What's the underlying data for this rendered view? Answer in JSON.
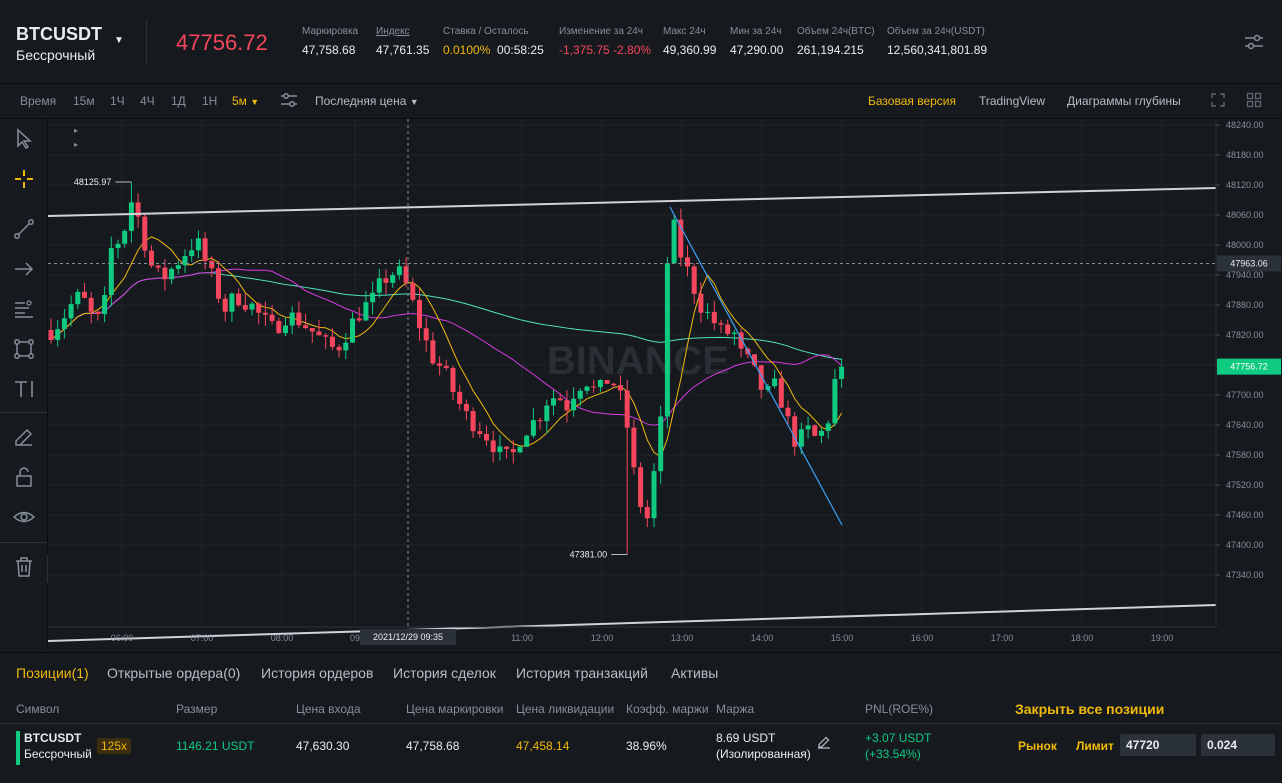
{
  "header": {
    "symbol": "BTCUSDT",
    "contract": "Бессрочный",
    "caret": "▼",
    "last_price": "47756.72",
    "stats": [
      {
        "label": "Маркировка",
        "value": "47,758.68"
      },
      {
        "label": "Индекс",
        "value": "47,761.35"
      },
      {
        "label": "Ставка / Осталось",
        "value": "0.0100%",
        "value2": "00:58:25"
      },
      {
        "label": "Изменение за 24ч",
        "value": "-1,375.75 -2.80%"
      },
      {
        "label": "Макс 24ч",
        "value": "49,360.99"
      },
      {
        "label": "Мин за 24ч",
        "value": "47,290.00"
      },
      {
        "label": "Объем 24ч(BTC)",
        "value": "261,194.215"
      },
      {
        "label": "Объем за 24ч(USDT)",
        "value": "12,560,341,801.89"
      }
    ]
  },
  "toolbar": {
    "intervals": [
      "Время",
      "15м",
      "1Ч",
      "4Ч",
      "1Д",
      "1Н",
      "5м"
    ],
    "active_interval": "5м",
    "price_type": "Последняя цена",
    "views": [
      "Базовая версия",
      "TradingView",
      "Диаграммы глубины"
    ],
    "active_view": "Базовая версия"
  },
  "chart": {
    "watermark": "BINANCE",
    "price_labels": [
      "48240.00",
      "48180.00",
      "48120.00",
      "48060.00",
      "48000.00",
      "47940.00",
      "47880.00",
      "47820.00",
      "47760.00",
      "47700.00",
      "47640.00",
      "47580.00",
      "47520.00",
      "47460.00",
      "47400.00",
      "47340.00"
    ],
    "time_labels": [
      "06:00",
      "07:00",
      "08:00",
      "09",
      "11:00",
      "12:00",
      "13:00",
      "14:00",
      "15:00",
      "16:00",
      "17:00",
      "18:00",
      "19:00"
    ],
    "crosshair_price": "47963.06",
    "crosshair_time": "2021/12/29 09:35",
    "current_price": "47756.72",
    "high_label": "48125.97",
    "low_label": "47381.00",
    "colors": {
      "up": "#0ecb81",
      "down": "#f6465d",
      "ma7": "#f0b90b",
      "ma25": "#d63ae3",
      "ma99": "#50e3c2",
      "trend": "#3d9ff5"
    }
  },
  "bottom": {
    "tabs": [
      "Позиции(1)",
      "Открытые ордера(0)",
      "История ордеров",
      "История сделок",
      "История транзакций",
      "Активы"
    ],
    "active_tab": "Позиции(1)",
    "columns": [
      "Символ",
      "Размер",
      "Цена входа",
      "Цена маркировки",
      "Цена ликвидации",
      "Коэфф. маржи",
      "Маржа",
      "PNL(ROE%)"
    ],
    "close_all": "Закрыть все позиции",
    "position": {
      "symbol": "BTCUSDT",
      "contract": "Бессрочный",
      "leverage": "125x",
      "size": "1146.21 USDT",
      "entry": "47,630.30",
      "mark": "47,758.68",
      "liq": "47,458.14",
      "margin_ratio": "38.96%",
      "margin": "8.69 USDT",
      "margin_type": "(Изолированная)",
      "pnl": "+3.07 USDT",
      "roe": "(+33.54%)",
      "market_btn": "Рынок",
      "limit_btn": "Лимит",
      "limit_price": "47720",
      "limit_qty": "0.024"
    }
  }
}
